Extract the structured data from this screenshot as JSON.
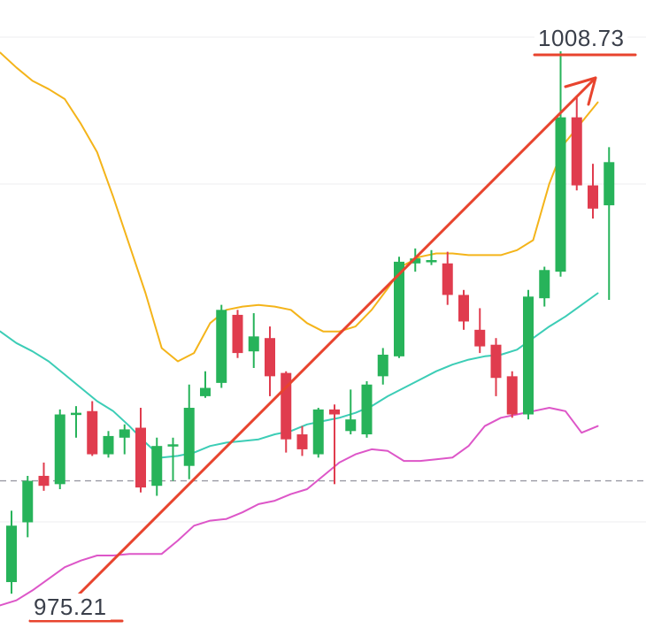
{
  "chart_data": {
    "type": "candlestick",
    "annotations": {
      "high_label": "1008.73",
      "low_label": "975.21",
      "high_value": 1008.73,
      "low_value": 975.21,
      "trend_arrow": {
        "from": 975.21,
        "to": 1008.73,
        "color": "#e8442e"
      },
      "dashed_level": 982.0
    },
    "ylim": [
      974.5,
      1010.5
    ],
    "colors": {
      "up": "#27b35a",
      "down": "#e03c4e",
      "ma_yellow": "#f4b41a",
      "ma_teal": "#3ccdb6",
      "indicator_magenta": "#dd56c8",
      "annotation": "#e8442e",
      "dashed": "#9a9aa4",
      "grid": "#ececef"
    },
    "candles": [
      {
        "o": 975.9,
        "c": 979.3,
        "h": 980.2,
        "l": 975.2
      },
      {
        "o": 979.5,
        "c": 982.0,
        "h": 982.3,
        "l": 978.6
      },
      {
        "o": 982.3,
        "c": 981.7,
        "h": 983.1,
        "l": 981.4
      },
      {
        "o": 981.8,
        "c": 986.0,
        "h": 986.3,
        "l": 981.5
      },
      {
        "o": 986.1,
        "c": 986.1,
        "h": 986.5,
        "l": 984.6
      },
      {
        "o": 986.2,
        "c": 983.6,
        "h": 986.8,
        "l": 983.5
      },
      {
        "o": 983.6,
        "c": 984.7,
        "h": 985.0,
        "l": 983.4
      },
      {
        "o": 984.6,
        "c": 985.1,
        "h": 985.4,
        "l": 983.6
      },
      {
        "o": 985.2,
        "c": 981.6,
        "h": 986.4,
        "l": 981.3
      },
      {
        "o": 981.7,
        "c": 984.1,
        "h": 984.6,
        "l": 981.1
      },
      {
        "o": 984.1,
        "c": 984.2,
        "h": 984.6,
        "l": 982.0
      },
      {
        "o": 982.9,
        "c": 986.4,
        "h": 987.8,
        "l": 982.1
      },
      {
        "o": 987.1,
        "c": 987.6,
        "h": 988.6,
        "l": 987.0
      },
      {
        "o": 987.9,
        "c": 992.3,
        "h": 992.6,
        "l": 987.6
      },
      {
        "o": 992.0,
        "c": 989.7,
        "h": 992.3,
        "l": 989.4
      },
      {
        "o": 989.8,
        "c": 990.7,
        "h": 992.1,
        "l": 988.8
      },
      {
        "o": 990.6,
        "c": 988.3,
        "h": 991.3,
        "l": 987.1
      },
      {
        "o": 988.5,
        "c": 984.5,
        "h": 988.6,
        "l": 983.7
      },
      {
        "o": 984.8,
        "c": 983.9,
        "h": 985.3,
        "l": 983.5
      },
      {
        "o": 983.6,
        "c": 986.3,
        "h": 986.4,
        "l": 983.4
      },
      {
        "o": 986.3,
        "c": 986.0,
        "h": 986.6,
        "l": 981.8
      },
      {
        "o": 985.0,
        "c": 985.7,
        "h": 987.5,
        "l": 984.8
      },
      {
        "o": 984.8,
        "c": 987.8,
        "h": 988.0,
        "l": 984.6
      },
      {
        "o": 988.3,
        "c": 989.6,
        "h": 990.0,
        "l": 987.8
      },
      {
        "o": 989.5,
        "c": 995.2,
        "h": 995.5,
        "l": 989.4
      },
      {
        "o": 995.1,
        "c": 995.4,
        "h": 996.0,
        "l": 994.6
      },
      {
        "o": 995.2,
        "c": 995.3,
        "h": 995.9,
        "l": 995.0
      },
      {
        "o": 995.1,
        "c": 993.2,
        "h": 995.8,
        "l": 992.6
      },
      {
        "o": 993.2,
        "c": 991.6,
        "h": 993.5,
        "l": 991.1
      },
      {
        "o": 991.1,
        "c": 990.1,
        "h": 992.4,
        "l": 989.7
      },
      {
        "o": 990.2,
        "c": 988.2,
        "h": 990.6,
        "l": 987.1
      },
      {
        "o": 988.3,
        "c": 986.0,
        "h": 988.6,
        "l": 985.8
      },
      {
        "o": 986.0,
        "c": 993.1,
        "h": 993.5,
        "l": 985.7
      },
      {
        "o": 993.0,
        "c": 994.7,
        "h": 994.9,
        "l": 992.5
      },
      {
        "o": 994.6,
        "c": 1003.9,
        "h": 1008.7,
        "l": 994.3
      },
      {
        "o": 1003.9,
        "c": 999.8,
        "h": 1005.2,
        "l": 999.5
      },
      {
        "o": 999.8,
        "c": 998.4,
        "h": 1001.1,
        "l": 997.8
      },
      {
        "o": 998.6,
        "c": 1001.2,
        "h": 1002.1,
        "l": 992.9
      }
    ],
    "ma_yellow": [
      1007.8,
      1006.9,
      1006.1,
      1005.6,
      1005.0,
      1003.5,
      1001.8,
      999.1,
      996.2,
      993.3,
      990.0,
      989.2,
      989.7,
      991.5,
      992.3,
      992.5,
      992.6,
      992.5,
      992.3,
      991.5,
      991.0,
      991.0,
      991.3,
      992.3,
      993.6,
      995.0,
      995.5,
      995.7,
      995.7,
      995.6,
      995.6,
      995.6,
      995.9,
      996.5,
      999.9,
      1002.4,
      1003.6,
      1004.8
    ],
    "ma_teal": [
      991.0,
      990.3,
      989.8,
      989.2,
      988.4,
      987.6,
      986.8,
      986.2,
      985.3,
      984.3,
      983.4,
      983.5,
      983.7,
      984.1,
      984.3,
      984.4,
      984.5,
      984.8,
      985.0,
      985.4,
      985.6,
      985.8,
      986.1,
      986.5,
      987.1,
      987.6,
      988.1,
      988.6,
      989.0,
      989.3,
      989.5,
      989.6,
      989.9,
      990.6,
      991.3,
      991.9,
      992.6,
      993.3
    ],
    "indicator_magenta": [
      974.5,
      974.8,
      975.4,
      976.1,
      976.8,
      977.2,
      977.5,
      977.5,
      977.6,
      977.6,
      977.6,
      978.4,
      979.3,
      979.6,
      979.7,
      980.1,
      980.6,
      980.8,
      981.2,
      981.5,
      982.3,
      983.1,
      983.6,
      983.9,
      983.8,
      983.2,
      983.2,
      983.3,
      983.4,
      984.1,
      985.3,
      985.8,
      986.0,
      986.2,
      986.4,
      986.2,
      984.9,
      985.3
    ]
  }
}
